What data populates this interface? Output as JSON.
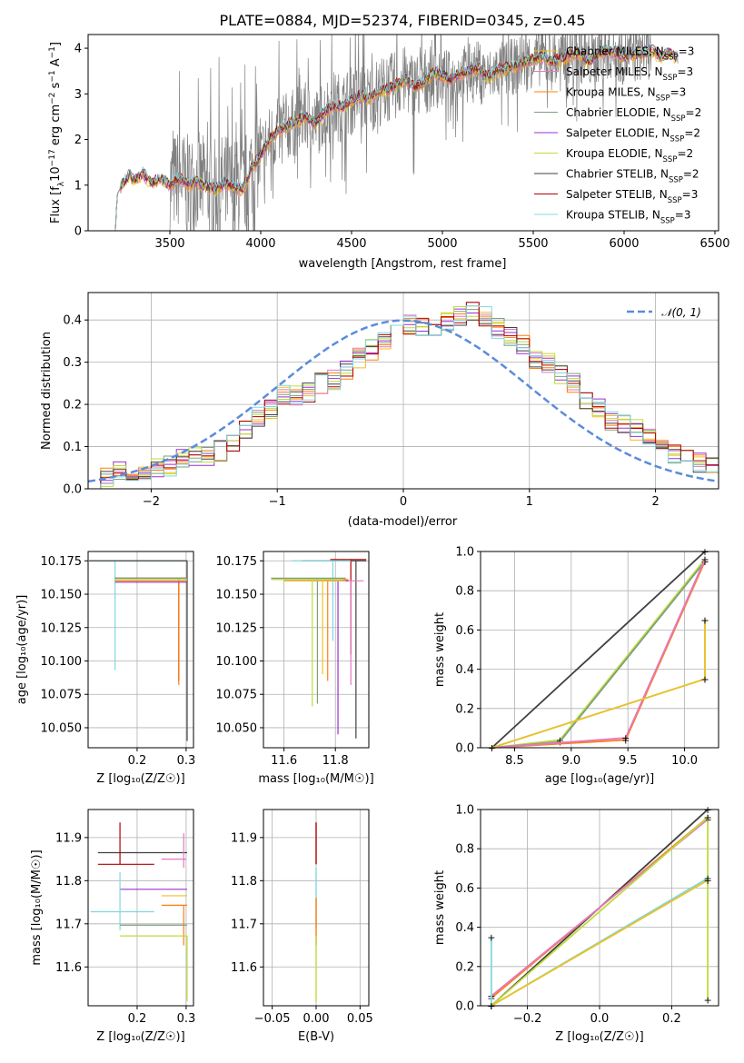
{
  "colors": {
    "chabrier_miles": "#f0c020",
    "salpeter_miles": "#e377c2",
    "kroupa_miles": "#ff7f0e",
    "chabrier_elodie": "#7f9f7f",
    "salpeter_elodie": "#9b30d0",
    "kroupa_elodie": "#bcdc3c",
    "chabrier_stelib": "#404040",
    "salpeter_stelib": "#b00000",
    "kroupa_stelib": "#80d8e0",
    "data": "#808080",
    "normal": "#5b8bdc",
    "grid": "#b0b0b0"
  },
  "chart_data": [
    {
      "id": "spectrum",
      "type": "line",
      "title": "PLATE=0884, MJD=52374, FIBERID=0345, z=0.45",
      "xlabel": "wavelength [Angstrom, rest frame]",
      "ylabel": "Flux [f_λ 10^{-17} erg cm^{-2} s^{-1} A^{-1}]",
      "xlim": [
        3050,
        6520
      ],
      "ylim": [
        0,
        4.3
      ],
      "xticks": [
        "3500",
        "4000",
        "4500",
        "5000",
        "5500",
        "6000",
        "6500"
      ],
      "yticks": [
        "0",
        "1",
        "2",
        "3",
        "4"
      ],
      "legend_position": "top-right",
      "legend": [
        {
          "label": "Chabrier MILES, N",
          "sub": "SSP",
          "n": "=3",
          "color": "chabrier_miles"
        },
        {
          "label": "Salpeter MILES, N",
          "sub": "SSP",
          "n": "=3",
          "color": "salpeter_miles"
        },
        {
          "label": "Kroupa MILES, N",
          "sub": "SSP",
          "n": "=3",
          "color": "kroupa_miles"
        },
        {
          "label": "Chabrier ELODIE, N",
          "sub": "SSP",
          "n": "=2",
          "color": "chabrier_elodie"
        },
        {
          "label": "Salpeter ELODIE, N",
          "sub": "SSP",
          "n": "=2",
          "color": "salpeter_elodie"
        },
        {
          "label": "Kroupa ELODIE, N",
          "sub": "SSP",
          "n": "=2",
          "color": "kroupa_elodie"
        },
        {
          "label": "Chabrier STELIB, N",
          "sub": "SSP",
          "n": "=2",
          "color": "chabrier_stelib"
        },
        {
          "label": "Salpeter STELIB, N",
          "sub": "SSP",
          "n": "=3",
          "color": "salpeter_stelib"
        },
        {
          "label": "Kroupa STELIB, N",
          "sub": "SSP",
          "n": "=3",
          "color": "kroupa_stelib"
        }
      ],
      "model_curve": {
        "x": [
          3200,
          3210,
          3230,
          3280,
          3300,
          3350,
          3400,
          3450,
          3500,
          3550,
          3600,
          3650,
          3700,
          3750,
          3800,
          3850,
          3900,
          3950,
          4000,
          4050,
          4100,
          4150,
          4200,
          4250,
          4300,
          4350,
          4400,
          4450,
          4500,
          4550,
          4600,
          4650,
          4700,
          4750,
          4800,
          4850,
          4900,
          4950,
          5000,
          5050,
          5100,
          5150,
          5200,
          5250,
          5300,
          5350,
          5400,
          5450,
          5500,
          5550,
          5600,
          5650,
          5700,
          5750,
          5800,
          5850,
          5900,
          5950,
          6000,
          6050,
          6100,
          6150,
          6200,
          6250,
          6300
        ],
        "y": [
          0,
          0.8,
          0.95,
          1.25,
          1.1,
          1.25,
          1.05,
          1.15,
          1.0,
          1.15,
          1.0,
          1.1,
          0.95,
          0.9,
          1.05,
          0.95,
          0.9,
          1.35,
          1.65,
          2.0,
          2.2,
          2.3,
          2.4,
          2.5,
          2.35,
          2.6,
          2.75,
          2.7,
          2.85,
          2.95,
          2.9,
          3.05,
          3.1,
          3.2,
          3.3,
          3.15,
          3.25,
          3.45,
          3.4,
          3.3,
          3.45,
          3.5,
          3.55,
          3.35,
          3.5,
          3.55,
          3.6,
          3.7,
          3.75,
          3.8,
          3.7,
          3.75,
          3.85,
          3.9,
          3.7,
          3.85,
          3.95,
          3.9,
          3.8,
          3.85,
          3.9,
          3.95,
          3.8,
          3.9,
          3.75
        ]
      },
      "data_noise_range": [
        3500,
        6150
      ]
    },
    {
      "id": "residuals",
      "type": "histogram",
      "xlabel": "(data-model)/error",
      "ylabel": "Normed distribution",
      "xlim": [
        -2.5,
        2.5
      ],
      "ylim": [
        0,
        0.465
      ],
      "xticks": [
        "−2",
        "−1",
        "0",
        "1",
        "2"
      ],
      "yticks": [
        "0.0",
        "0.1",
        "0.2",
        "0.3",
        "0.4"
      ],
      "legend_position": "top-right",
      "legend": [
        {
          "label": "𝒩(0, 1)",
          "color": "normal"
        }
      ],
      "bin_edges_start": -2.5,
      "bin_width": 0.1,
      "base_values": [
        0.02,
        0.03,
        0.04,
        0.03,
        0.035,
        0.05,
        0.055,
        0.07,
        0.075,
        0.08,
        0.09,
        0.11,
        0.14,
        0.17,
        0.19,
        0.22,
        0.22,
        0.23,
        0.25,
        0.26,
        0.28,
        0.31,
        0.33,
        0.35,
        0.37,
        0.39,
        0.38,
        0.38,
        0.4,
        0.41,
        0.42,
        0.41,
        0.38,
        0.36,
        0.34,
        0.31,
        0.3,
        0.27,
        0.25,
        0.21,
        0.19,
        0.16,
        0.15,
        0.14,
        0.12,
        0.1,
        0.08,
        0.07,
        0.06,
        0.05
      ],
      "normal_curve": {
        "mean": 0,
        "sigma": 1
      }
    },
    {
      "id": "age-vs-Z",
      "type": "errorbar",
      "xlabel": "Z [log₁₀(Z/Z☉)]",
      "ylabel": "age  [log₁₀(age/yr)]",
      "xlim": [
        0.1,
        0.315
      ],
      "ylim": [
        10.035,
        10.182
      ],
      "xticks": [
        "0.2",
        "0.3"
      ],
      "yticks": [
        "10.050",
        "10.075",
        "10.100",
        "10.125",
        "10.150",
        "10.175"
      ]
    },
    {
      "id": "age-vs-mass",
      "type": "errorbar",
      "xlabel": "mass [log₁₀(M/M☉)]",
      "ylabel": "",
      "xlim": [
        11.52,
        11.93
      ],
      "ylim": [
        10.035,
        10.182
      ],
      "xticks": [
        "11.6",
        "11.8"
      ],
      "yticks": [
        "10.050",
        "10.075",
        "10.100",
        "10.125",
        "10.150",
        "10.175"
      ]
    },
    {
      "id": "weight-vs-age",
      "type": "line",
      "xlabel": "age  [log₁₀(age/yr)]",
      "ylabel": "mass weight",
      "xlim": [
        8.2,
        10.3
      ],
      "ylim": [
        0,
        1
      ],
      "xticks": [
        "8.5",
        "9.0",
        "9.5",
        "10.0"
      ],
      "yticks": [
        "0.0",
        "0.2",
        "0.4",
        "0.6",
        "0.8",
        "1.0"
      ],
      "series": [
        {
          "color": "chabrier_stelib",
          "x": [
            8.3,
            10.18
          ],
          "y": [
            0.0,
            1.0
          ]
        },
        {
          "color": "kroupa_elodie",
          "x": [
            8.3,
            8.9,
            10.18
          ],
          "y": [
            0.0,
            0.04,
            0.96
          ]
        },
        {
          "color": "chabrier_elodie",
          "x": [
            8.3,
            8.9,
            10.18
          ],
          "y": [
            0.0,
            0.03,
            0.95
          ]
        },
        {
          "color": "kroupa_miles",
          "x": [
            8.3,
            9.48,
            10.18
          ],
          "y": [
            0.0,
            0.04,
            0.95
          ]
        },
        {
          "color": "salpeter_miles",
          "x": [
            8.3,
            9.48,
            10.18
          ],
          "y": [
            0.0,
            0.05,
            0.96
          ]
        },
        {
          "color": "kroupa_stelib",
          "x": [
            8.3,
            10.18,
            10.18
          ],
          "y": [
            0.0,
            0.35,
            0.65
          ]
        },
        {
          "color": "chabrier_miles",
          "x": [
            8.3,
            10.18,
            10.18
          ],
          "y": [
            0.0,
            0.35,
            0.65
          ]
        }
      ]
    },
    {
      "id": "mass-vs-Z",
      "type": "errorbar",
      "xlabel": "Z [log₁₀(Z/Z☉)]",
      "ylabel": "mass [log₁₀(M/M☉)]",
      "xlim": [
        0.1,
        0.315
      ],
      "ylim": [
        11.51,
        11.965
      ],
      "xticks": [
        "0.2",
        "0.3"
      ],
      "yticks": [
        "11.6",
        "11.7",
        "11.8",
        "11.9"
      ]
    },
    {
      "id": "mass-vs-EBV",
      "type": "errorbar",
      "xlabel": "E(B-V)",
      "ylabel": "",
      "xlim": [
        -0.06,
        0.06
      ],
      "ylim": [
        11.51,
        11.965
      ],
      "xticks": [
        "−0.05",
        "0.00",
        "0.05"
      ],
      "yticks": [
        "11.6",
        "11.7",
        "11.8",
        "11.9"
      ]
    },
    {
      "id": "weight-vs-Z",
      "type": "line",
      "xlabel": "Z [log₁₀(Z/Z☉)]",
      "ylabel": "mass weight",
      "xlim": [
        -0.33,
        0.33
      ],
      "ylim": [
        0,
        1
      ],
      "xticks": [
        "−0.2",
        "0.0",
        "0.2"
      ],
      "yticks": [
        "0.0",
        "0.2",
        "0.4",
        "0.6",
        "0.8",
        "1.0"
      ],
      "series": [
        {
          "color": "chabrier_stelib",
          "x": [
            -0.3,
            0.3
          ],
          "y": [
            0.0,
            1.0
          ]
        },
        {
          "color": "kroupa_miles",
          "x": [
            -0.3,
            0.3
          ],
          "y": [
            0.04,
            0.96
          ]
        },
        {
          "color": "salpeter_miles",
          "x": [
            -0.3,
            0.3
          ],
          "y": [
            0.05,
            0.95
          ]
        },
        {
          "color": "kroupa_elodie",
          "x": [
            -0.3,
            0.3,
            0.3
          ],
          "y": [
            0.0,
            0.96,
            0.03
          ]
        },
        {
          "color": "kroupa_stelib",
          "x": [
            -0.3,
            -0.3,
            0.3
          ],
          "y": [
            0.35,
            0.0,
            0.65
          ]
        },
        {
          "color": "chabrier_miles",
          "x": [
            -0.3,
            0.3
          ],
          "y": [
            0.0,
            0.64
          ]
        }
      ]
    }
  ]
}
